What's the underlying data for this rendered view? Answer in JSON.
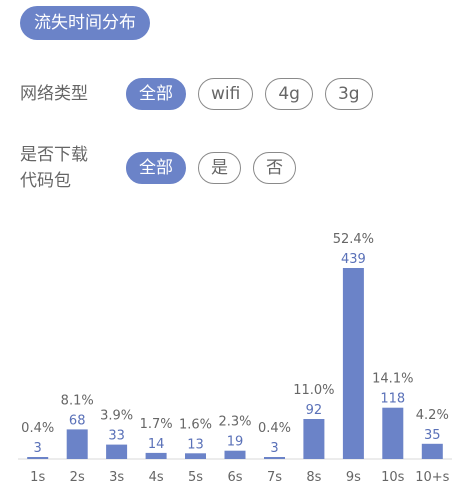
{
  "header": {
    "title": "流失时间分布"
  },
  "filters": [
    {
      "label": "网络类型",
      "options": [
        "全部",
        "wifi",
        "4g",
        "3g"
      ],
      "selected": "全部"
    },
    {
      "label": "是否下载代码包",
      "label_lines": [
        "是否下载",
        "代码包"
      ],
      "options": [
        "全部",
        "是",
        "否"
      ],
      "selected": "全部"
    }
  ],
  "colors": {
    "accent": "#6b83c8",
    "bar": "#6b83c8",
    "value_label": "#5a71b8"
  },
  "chart_data": {
    "type": "bar",
    "categories": [
      "1s",
      "2s",
      "3s",
      "4s",
      "5s",
      "6s",
      "7s",
      "8s",
      "9s",
      "10s",
      "10+s"
    ],
    "values": [
      3,
      68,
      33,
      14,
      13,
      19,
      3,
      92,
      439,
      118,
      35
    ],
    "percent_labels": [
      "0.4%",
      "8.1%",
      "3.9%",
      "1.7%",
      "1.6%",
      "2.3%",
      "0.4%",
      "11.0%",
      "52.4%",
      "14.1%",
      "4.2%"
    ],
    "title": "流失时间分布",
    "xlabel": "",
    "ylabel": "",
    "ylim": [
      0,
      439
    ],
    "grid": false,
    "legend": "none"
  }
}
